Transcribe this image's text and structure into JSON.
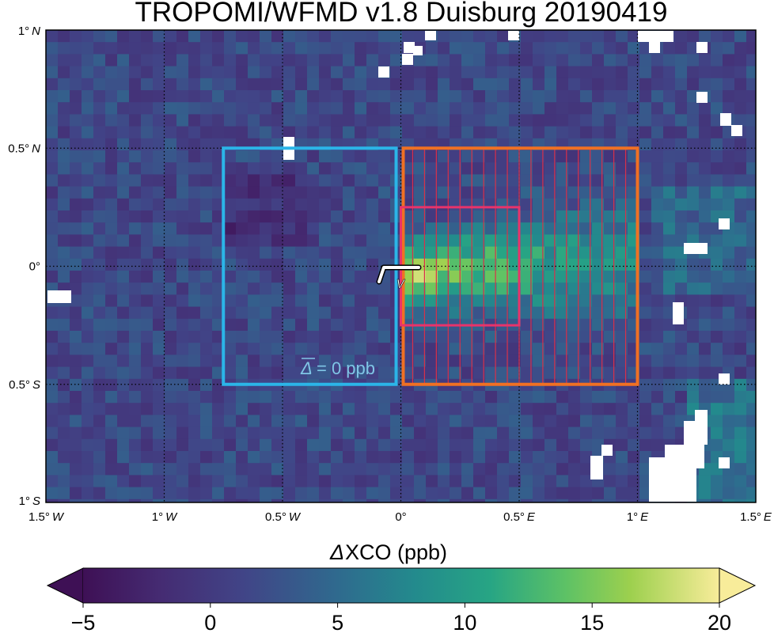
{
  "title": "TROPOMI/WFMD v1.8 Duisburg 20190419",
  "map": {
    "lon_range": [
      -1.5,
      1.5
    ],
    "lat_range": [
      -1.0,
      1.0
    ],
    "grid_lines": true,
    "x_ticks": [
      {
        "deg": "1.5°",
        "hemi": "W"
      },
      {
        "deg": "1°",
        "hemi": "W"
      },
      {
        "deg": "0.5°",
        "hemi": "W"
      },
      {
        "deg": "0°",
        "hemi": ""
      },
      {
        "deg": "0.5°",
        "hemi": "E"
      },
      {
        "deg": "1°",
        "hemi": "E"
      },
      {
        "deg": "1.5°",
        "hemi": "E"
      }
    ],
    "y_ticks": [
      {
        "deg": "1°",
        "hemi": "N"
      },
      {
        "deg": "0.5°",
        "hemi": "N"
      },
      {
        "deg": "0°",
        "hemi": ""
      },
      {
        "deg": "0.5°",
        "hemi": "S"
      },
      {
        "deg": "1°",
        "hemi": "S"
      }
    ]
  },
  "colors": {
    "background_box": "#2bb5e8",
    "source_box": "#f07023",
    "inner_box": "#e8336b",
    "transect_lines": "#d8304a",
    "wind_arrow": "#ffffff",
    "missing_data": "#ffffff"
  },
  "annotations": {
    "background_delta_symbol": "Δ",
    "background_value": "= 0 ppb",
    "wind_symbol": "v"
  },
  "colorbar": {
    "label_symbol": "Δ",
    "label_text": "XCO (ppb)",
    "colormap": "viridis-like (dark purple → teal → green → light yellow)",
    "vmin": -5,
    "vmax": 20,
    "extend": "both",
    "ticks": [
      "−5",
      "0",
      "5",
      "10",
      "15",
      "20"
    ]
  }
}
